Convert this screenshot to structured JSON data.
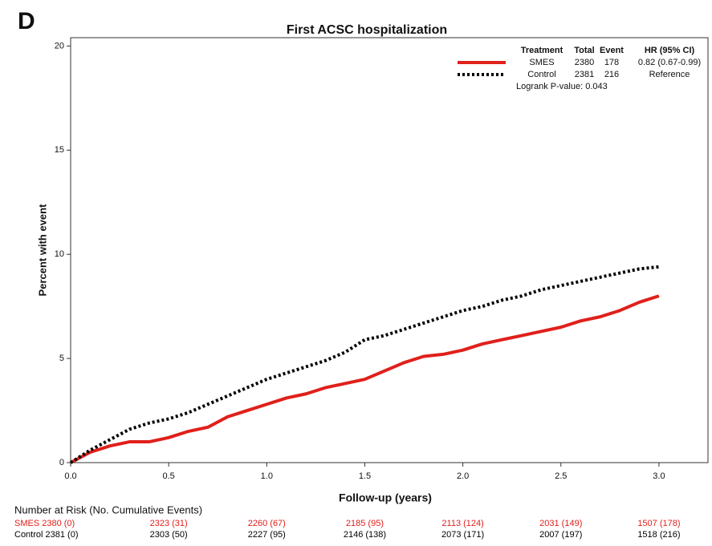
{
  "chart_data": {
    "type": "line",
    "panel_label": "D",
    "title": "First ACSC hospitalization",
    "xlabel": "Follow-up (years)",
    "ylabel": "Percent with event",
    "xlim": [
      0,
      3.25
    ],
    "ylim": [
      0,
      20.4
    ],
    "xticks": [
      {
        "value": 0,
        "label": "0.0"
      },
      0.5,
      {
        "value": 1,
        "label": "1.0"
      },
      1.5,
      {
        "value": 2,
        "label": "2.0"
      },
      2.5,
      {
        "value": 3,
        "label": "3.0"
      }
    ],
    "yticks": [
      0,
      5,
      10,
      15,
      20
    ],
    "x": [
      0,
      0.1,
      0.2,
      0.3,
      0.4,
      0.5,
      0.6,
      0.7,
      0.8,
      0.9,
      1.0,
      1.1,
      1.2,
      1.3,
      1.4,
      1.5,
      1.6,
      1.7,
      1.8,
      1.9,
      2.0,
      2.1,
      2.2,
      2.3,
      2.4,
      2.5,
      2.6,
      2.7,
      2.8,
      2.9,
      3.0
    ],
    "legend_headers": [
      "Treatment",
      "Total",
      "Event",
      "HR (95% CI)"
    ],
    "series": [
      {
        "name": "SMES",
        "color": "#e0201b",
        "dashed": false,
        "total": 2380,
        "event": 178,
        "hr": "0.82 (0.67-0.99)",
        "values": [
          0,
          0.5,
          0.8,
          1.0,
          1.0,
          1.2,
          1.5,
          1.7,
          2.2,
          2.5,
          2.8,
          3.1,
          3.3,
          3.6,
          3.8,
          4.0,
          4.4,
          4.8,
          5.1,
          5.2,
          5.4,
          5.7,
          5.9,
          6.1,
          6.3,
          6.5,
          6.8,
          7.0,
          7.3,
          7.7,
          8.0
        ]
      },
      {
        "name": "Control",
        "color": "#000000",
        "dashed": true,
        "total": 2381,
        "event": 216,
        "hr": "Reference",
        "values": [
          0,
          0.6,
          1.1,
          1.6,
          1.9,
          2.1,
          2.4,
          2.8,
          3.2,
          3.6,
          4.0,
          4.3,
          4.6,
          4.9,
          5.3,
          5.9,
          6.1,
          6.4,
          6.7,
          7.0,
          7.3,
          7.5,
          7.8,
          8.0,
          8.3,
          8.5,
          8.7,
          8.9,
          9.1,
          9.3,
          9.4
        ]
      }
    ],
    "annotation": "Logrank P-value: 0.043",
    "risk_table": {
      "title": "Number at Risk (No. Cumulative Events)",
      "rows": [
        [
          "SMES 2380 (0)",
          "2323 (31)",
          "2260 (67)",
          "2185 (95)",
          "2113 (124)",
          "2031 (149)",
          "1507 (178)"
        ],
        [
          "Control 2381 (0)",
          "2303 (50)",
          "2227 (95)",
          "2146 (138)",
          "2073 (171)",
          "2007 (197)",
          "1518 (216)"
        ]
      ]
    }
  }
}
